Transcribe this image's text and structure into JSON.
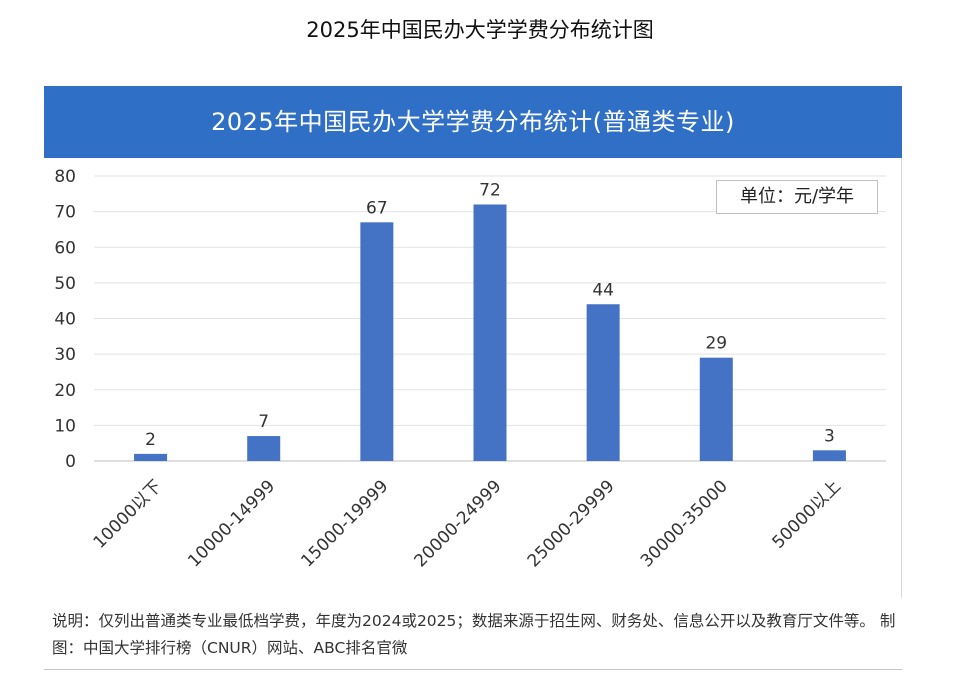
{
  "page": {
    "title": "2025年中国民办大学学费分布统计图",
    "banner_title": "2025年中国民办大学学费分布统计(普通类专业)",
    "unit_label": "单位：元/学年",
    "note": "说明：仅列出普通类专业最低档学费，年度为2024或2025；数据来源于招生网、财务处、信息公开以及教育厅文件等。 制图：中国大学排行榜（CNUR）网站、ABC排名官微",
    "colors": {
      "banner": "#2f6fc6",
      "bar": "#4472c4"
    }
  },
  "chart_data": {
    "type": "bar",
    "title": "2025年中国民办大学学费分布统计(普通类专业)",
    "categories": [
      "10000以下",
      "10000-14999",
      "15000-19999",
      "20000-24999",
      "25000-29999",
      "30000-35000",
      "50000以上"
    ],
    "values": [
      2,
      7,
      67,
      72,
      44,
      29,
      3
    ],
    "ylim": [
      0,
      80
    ],
    "yticks": [
      0,
      10,
      20,
      30,
      40,
      50,
      60,
      70,
      80
    ],
    "grid": true,
    "data_labels": true,
    "legend": "none"
  }
}
